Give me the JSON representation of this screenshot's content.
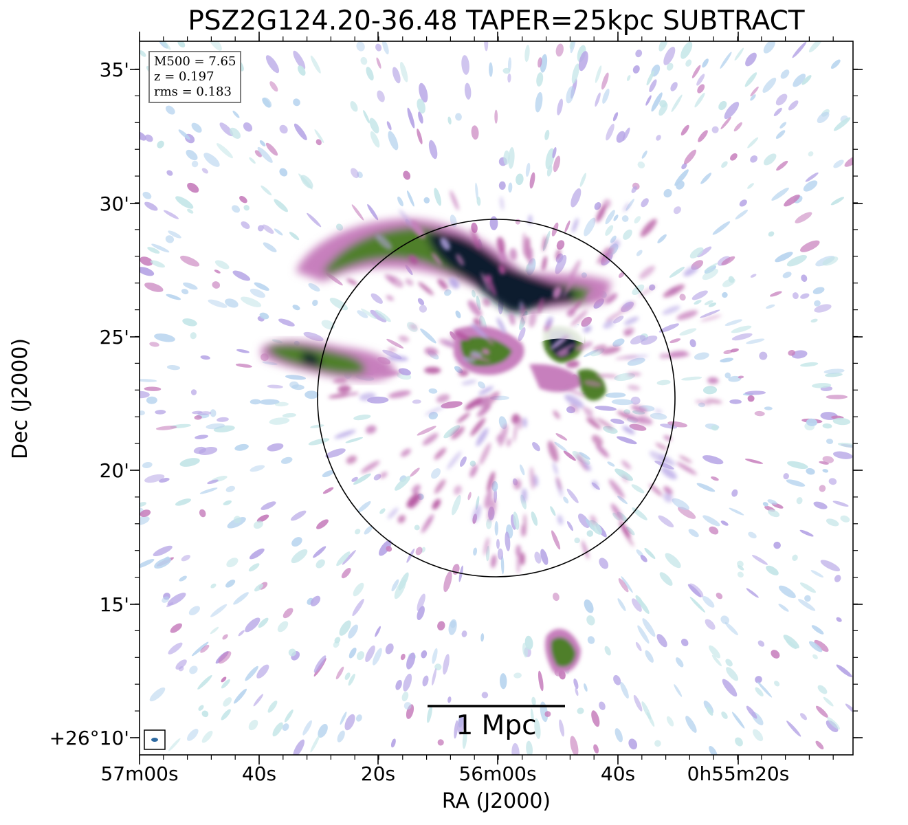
{
  "title": "PSZ2G124.20-36.48 TAPER=25kpc SUBTRACT",
  "xlabel": "RA (J2000)",
  "ylabel": "Dec (J2000)",
  "yticks": [
    "35'",
    "30'",
    "25'",
    "20'",
    "15'",
    "+26°10'"
  ],
  "xticks": [
    "57m00s",
    "40s",
    "20s",
    "56m00s",
    "40s",
    "0h55m20s"
  ],
  "info": {
    "mass": "M500 = 7.65",
    "redshift": "z = 0.197",
    "rms": "rms = 0.183"
  },
  "scalebar": {
    "label": "1 Mpc"
  },
  "colors": {
    "faint": "#b9d5ef",
    "faint_cyan": "#c5e6e8",
    "lilac": "#b7a6e6",
    "pink": "#c77fbd",
    "magenta": "#b24f9c",
    "green": "#4f7f2b",
    "dark": "#111a2e",
    "circle": "#000000",
    "beam": "#2e6aa1"
  }
}
